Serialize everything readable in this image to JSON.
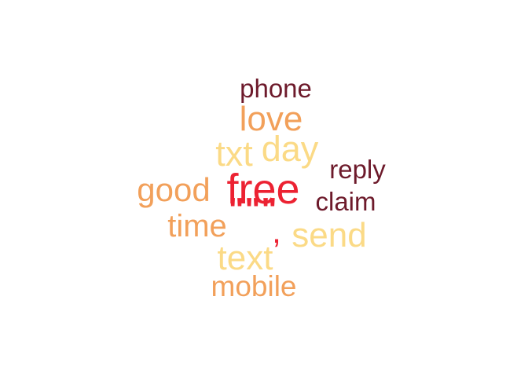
{
  "palette": {
    "dark_red": "#6d1a2b",
    "orange": "#f2a05a",
    "yellow": "#fbda86",
    "red": "#ec2232"
  },
  "words": [
    {
      "id": "phone",
      "text": "phone",
      "color": "#6d1a2b"
    },
    {
      "id": "love",
      "text": "love",
      "color": "#f2a05a"
    },
    {
      "id": "day",
      "text": "day",
      "color": "#fbda86"
    },
    {
      "id": "txt",
      "text": "txt",
      "color": "#fbda86"
    },
    {
      "id": "reply",
      "text": "reply",
      "color": "#6d1a2b"
    },
    {
      "id": "good",
      "text": "good",
      "color": "#f2a05a"
    },
    {
      "id": "free",
      "text": "free",
      "color": "#ec2232"
    },
    {
      "id": "claim",
      "text": "claim",
      "color": "#6d1a2b"
    },
    {
      "id": "quote",
      "text": "\"\"\"",
      "color": "#ec2232"
    },
    {
      "id": "time",
      "text": "time",
      "color": "#f2a05a"
    },
    {
      "id": "comma",
      "text": ",",
      "color": "#ec2232"
    },
    {
      "id": "send",
      "text": "send",
      "color": "#fbda86"
    },
    {
      "id": "text",
      "text": "text",
      "color": "#fbda86"
    },
    {
      "id": "mobile",
      "text": "mobile",
      "color": "#f2a05a"
    }
  ]
}
